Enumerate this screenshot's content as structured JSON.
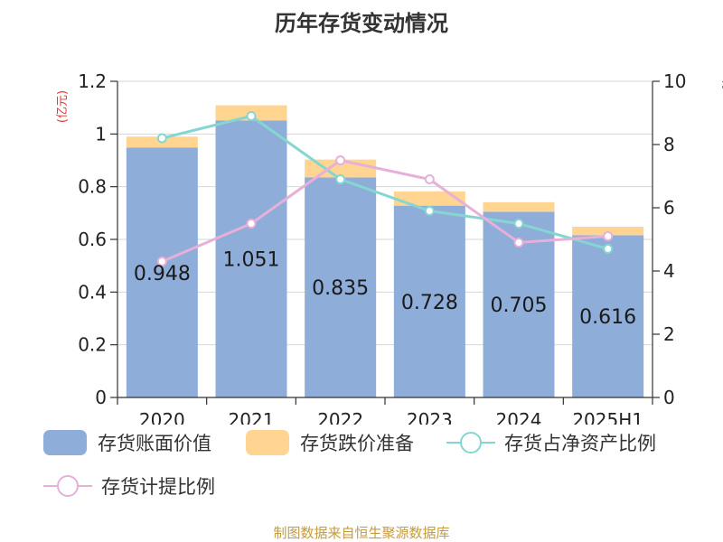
{
  "title": "历年存货变动情况",
  "footer": "制图数据来自恒生聚源数据库",
  "axes": {
    "left_unit": "(亿元)",
    "right_unit": "%"
  },
  "colors": {
    "book_value": "#8eadd9",
    "impairment": "#ffd591",
    "share_line": "#85d6d0",
    "ratio_line": "#e6b0d9",
    "unit_red": "#e8302e",
    "footer": "#c59b3c"
  },
  "legend": {
    "book_value": "存货账面价值",
    "impairment": "存货跌价准备",
    "share": "存货占净资产比例",
    "ratio": "存货计提比例"
  },
  "chart_data": {
    "type": "bar",
    "categories": [
      "2020",
      "2021",
      "2022",
      "2023",
      "2024",
      "2025H1"
    ],
    "series": [
      {
        "name": "存货账面价值",
        "type": "bar",
        "axis": "left",
        "stack": "total",
        "values": [
          0.948,
          1.051,
          0.835,
          0.728,
          0.705,
          0.616
        ],
        "data_labels": [
          "0.948",
          "1.051",
          "0.835",
          "0.728",
          "0.705",
          "0.616"
        ]
      },
      {
        "name": "存货跌价准备",
        "type": "bar",
        "axis": "left",
        "stack": "total",
        "values": [
          0.042,
          0.058,
          0.068,
          0.054,
          0.036,
          0.032
        ]
      },
      {
        "name": "存货占净资产比例",
        "type": "line",
        "axis": "right",
        "values": [
          8.2,
          8.9,
          6.9,
          5.9,
          5.5,
          4.7
        ]
      },
      {
        "name": "存货计提比例",
        "type": "line",
        "axis": "right",
        "values": [
          4.3,
          5.5,
          7.5,
          6.9,
          4.9,
          5.1
        ]
      }
    ],
    "y_left": {
      "min": 0,
      "max": 1.2,
      "ticks": [
        "0",
        "0.2",
        "0.4",
        "0.6",
        "0.8",
        "1",
        "1.2"
      ]
    },
    "y_right": {
      "min": 0,
      "max": 10,
      "ticks": [
        "0",
        "2",
        "4",
        "6",
        "8",
        "10"
      ]
    },
    "grid": true,
    "legend_position": "bottom"
  }
}
